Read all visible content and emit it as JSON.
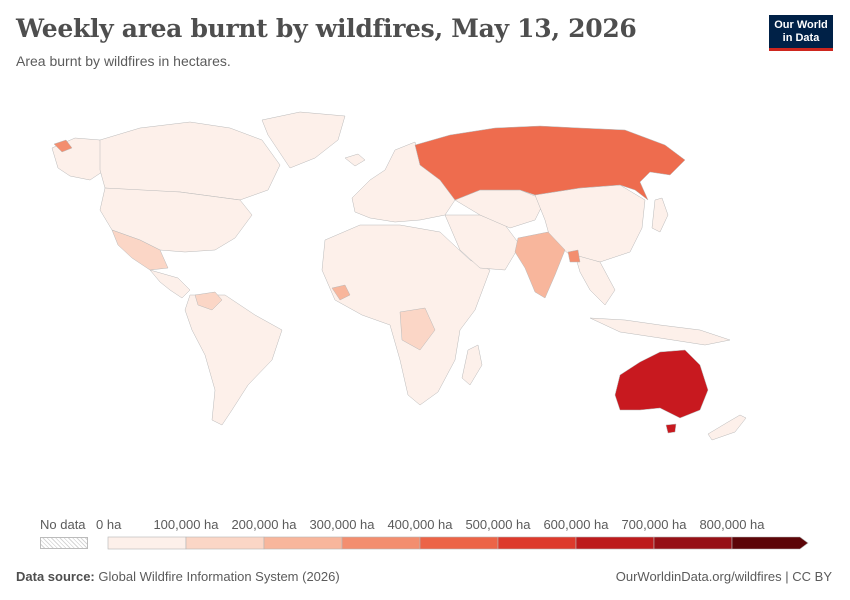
{
  "header": {
    "title": "Weekly area burnt by wildfires, May 13, 2026",
    "subtitle": "Area burnt by wildfires in hectares."
  },
  "logo": {
    "line1": "Our World",
    "line2": "in Data"
  },
  "legend": {
    "no_data_label": "No data",
    "bins": [
      {
        "label": "0 ha",
        "color": "#fdf0ea"
      },
      {
        "label": "100,000 ha",
        "color": "#fbd6c6"
      },
      {
        "label": "200,000 ha",
        "color": "#f8b69c"
      },
      {
        "label": "300,000 ha",
        "color": "#f38e6f"
      },
      {
        "label": "400,000 ha",
        "color": "#ec6447"
      },
      {
        "label": "500,000 ha",
        "color": "#dd3a2c"
      },
      {
        "label": "600,000 ha",
        "color": "#bd1b1c"
      },
      {
        "label": "700,000 ha",
        "color": "#961016"
      },
      {
        "label": "800,000 ha",
        "color": "#5c0508"
      }
    ]
  },
  "map_colors": {
    "default": "#fdf0ea",
    "low": "#fbd6c6",
    "medium": "#f8b69c",
    "russia": "#ee6c4e",
    "australia": "#c8191f",
    "water": "#ffffff"
  },
  "footer": {
    "source_label": "Data source:",
    "source_text": "Global Wildfire Information System (2026)",
    "link": "OurWorldinData.org/wildfires | CC BY"
  }
}
